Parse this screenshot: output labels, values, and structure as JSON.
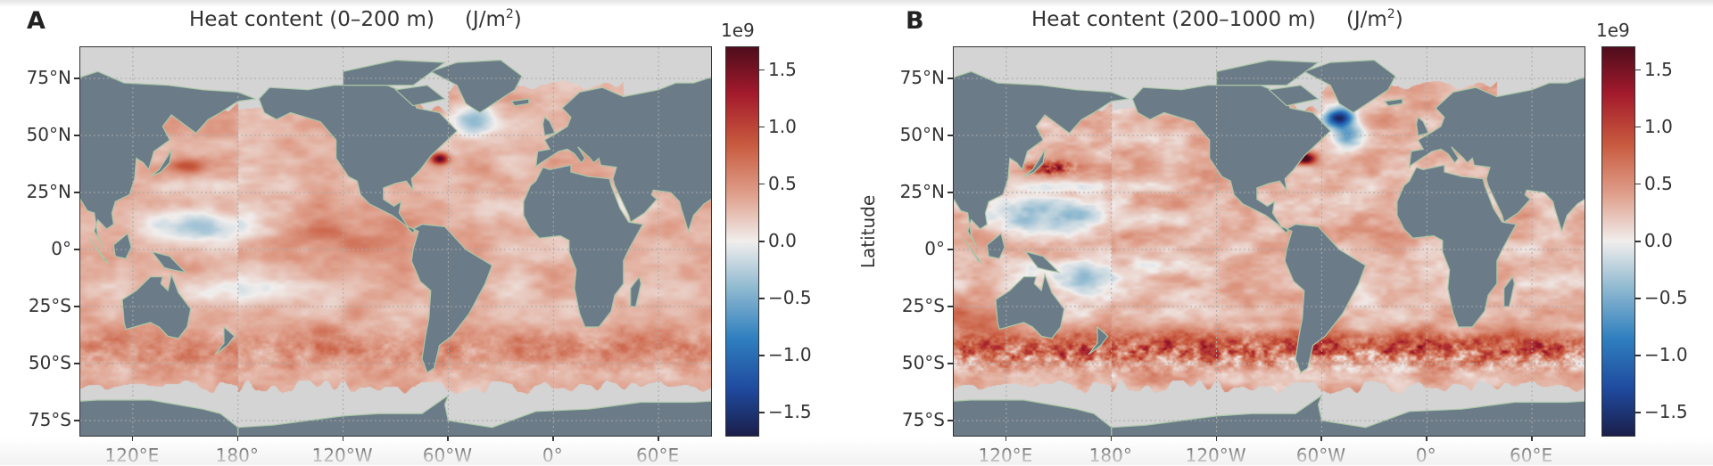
{
  "figure": {
    "panels": [
      {
        "label": "A",
        "title": "Heat content (0–200 m)",
        "unit_prefix": "(J/m",
        "unit_sup": "2",
        "unit_suffix": ")",
        "ylabel": "",
        "colorbar": {
          "multiplier": "1e9",
          "ticks": [
            "1.5",
            "1.0",
            "0.5",
            "0.0",
            "−0.5",
            "−1.0",
            "−1.5"
          ],
          "tick_values": [
            1.5,
            1.0,
            0.5,
            0.0,
            -0.5,
            -1.0,
            -1.5
          ],
          "range": [
            -1.7,
            1.7
          ]
        }
      },
      {
        "label": "B",
        "title": "Heat content (200–1000 m)",
        "unit_prefix": "(J/m",
        "unit_sup": "2",
        "unit_suffix": ")",
        "ylabel": "Latitude",
        "colorbar": {
          "multiplier": "1e9",
          "ticks": [
            "1.5",
            "1.0",
            "0.5",
            "0.0",
            "−0.5",
            "−1.0",
            "−1.5"
          ],
          "tick_values": [
            1.5,
            1.0,
            0.5,
            0.0,
            -0.5,
            -1.0,
            -1.5
          ],
          "range": [
            -1.7,
            1.7
          ]
        }
      }
    ],
    "lat_ticks": [
      "75°N",
      "50°N",
      "25°N",
      "0°",
      "25°S",
      "50°S",
      "75°S"
    ],
    "lat_values": [
      75,
      50,
      25,
      0,
      -25,
      -50,
      -75
    ],
    "lon_ticks": [
      "120°E",
      "180°",
      "120°W",
      "60°W",
      "0°",
      "60°E"
    ],
    "lon_values": [
      120,
      180,
      -120,
      -60,
      0,
      60
    ]
  },
  "colors": {
    "land": "#6b7b88",
    "no_data": "#d4d4d4",
    "coast": "#a9c7a6",
    "colormap": [
      "#1b1f4b",
      "#1f4a9e",
      "#2f7fbf",
      "#8fb9d0",
      "#f1eeed",
      "#dfa08c",
      "#c85a3e",
      "#a31a2c",
      "#4e0d1c"
    ]
  },
  "chart_data": {
    "type": "heatmap",
    "title": [
      "Heat content (0–200 m) (J/m2)",
      "Heat content (200–1000 m) (J/m2)"
    ],
    "ylabel": "Latitude",
    "colorbar_range": [
      -1700000000.0,
      1700000000.0
    ],
    "grid": true
  }
}
